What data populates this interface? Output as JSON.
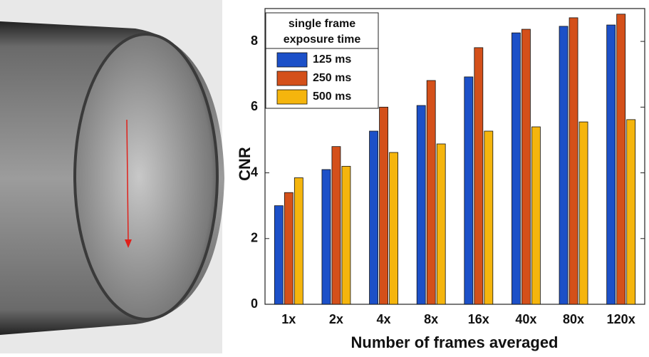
{
  "chart_data": {
    "type": "bar",
    "xlabel": "Number of frames averaged",
    "ylabel": "CNR",
    "categories": [
      "1x",
      "2x",
      "4x",
      "8x",
      "16x",
      "40x",
      "80x",
      "120x"
    ],
    "legend_title": [
      "single frame",
      "exposure time"
    ],
    "legend_position": "upper left",
    "series": [
      {
        "name": "125 ms",
        "color": "#1c50c8",
        "values": [
          3.0,
          4.1,
          5.27,
          6.05,
          6.92,
          8.26,
          8.46,
          8.5
        ]
      },
      {
        "name": "250 ms",
        "color": "#d4501a",
        "values": [
          3.4,
          4.8,
          6.0,
          6.81,
          7.81,
          8.37,
          8.72,
          8.83
        ]
      },
      {
        "name": "500 ms",
        "color": "#f5b50d",
        "values": [
          3.85,
          4.2,
          4.62,
          4.88,
          5.27,
          5.4,
          5.55,
          5.62
        ]
      }
    ],
    "ylim": [
      0,
      9
    ],
    "yticks": [
      0,
      2,
      4,
      6,
      8
    ],
    "grid": false
  }
}
